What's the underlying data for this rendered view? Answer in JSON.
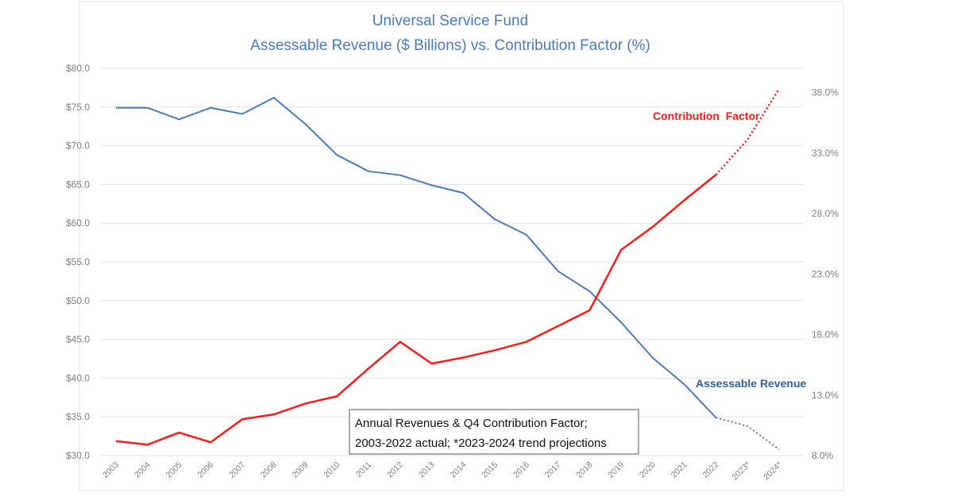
{
  "chart_data": {
    "type": "line",
    "title": [
      "Universal Service Fund",
      "Assessable Revenue ($ Billions) vs. Contribution Factor (%)"
    ],
    "categories": [
      "2003",
      "2004",
      "2005",
      "2006",
      "2007",
      "2008",
      "2009",
      "2010",
      "2011",
      "2012",
      "2013",
      "2014",
      "2015",
      "2016",
      "2017",
      "2018",
      "2019",
      "2020",
      "2021",
      "2022",
      "2023*",
      "2024*"
    ],
    "y_left": {
      "range": [
        30,
        80
      ],
      "ticks": [
        "$30.0",
        "$35.0",
        "$40.0",
        "$45.0",
        "$50.0",
        "$55.0",
        "$60.0",
        "$65.0",
        "$70.0",
        "$75.0",
        "$80.0"
      ],
      "tick_values": [
        30,
        35,
        40,
        45,
        50,
        55,
        60,
        65,
        70,
        75,
        80
      ]
    },
    "y_right": {
      "range": [
        8,
        40
      ],
      "ticks": [
        "8.0%",
        "13.0%",
        "18.0%",
        "23.0%",
        "28.0%",
        "33.0%",
        "38.0%"
      ],
      "tick_values": [
        8,
        13,
        18,
        23,
        28,
        33,
        38
      ]
    },
    "grid": true,
    "series": [
      {
        "name": "Assessable Revenue",
        "axis": "left",
        "color": "#4a7bbf",
        "values": [
          74.9,
          74.9,
          73.4,
          74.9,
          74.1,
          76.2,
          72.8,
          68.8,
          66.7,
          66.2,
          64.9,
          63.9,
          60.5,
          58.5,
          53.8,
          51.2,
          47.2,
          42.6,
          39.2,
          34.9,
          33.8,
          30.8
        ],
        "projected_from_index": 19
      },
      {
        "name": "Contribution  Factor",
        "axis": "right",
        "color": "#ff1a1a",
        "values": [
          9.2,
          8.9,
          9.9,
          9.1,
          11.0,
          11.4,
          12.3,
          12.9,
          15.2,
          17.4,
          15.6,
          16.1,
          16.7,
          17.4,
          18.7,
          20.0,
          25.0,
          26.9,
          29.1,
          31.2,
          34.1,
          38.3
        ],
        "projected_from_index": 19
      }
    ],
    "annotation": [
      "Annual Revenues & Q4 Contribution Factor;",
      "2003-2022 actual; *2023-2024 trend projections"
    ]
  }
}
